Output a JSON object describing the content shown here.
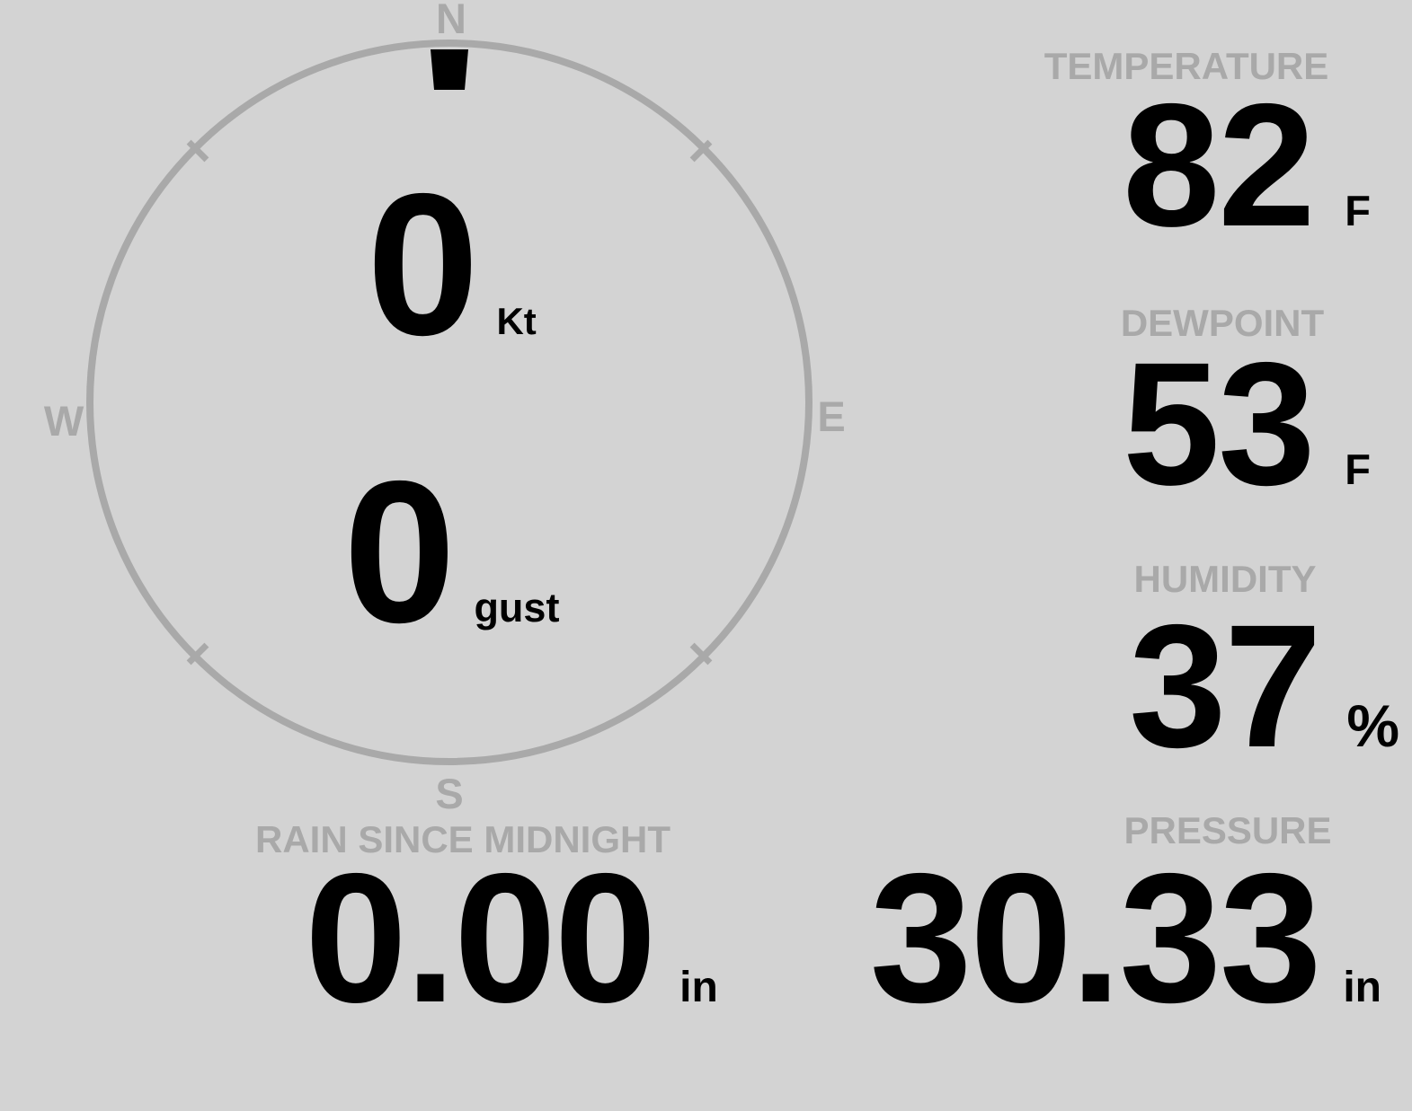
{
  "colors": {
    "background": "#d3d3d3",
    "muted": "#a9a9a9",
    "ink": "#000000"
  },
  "wind": {
    "compass": {
      "north": "N",
      "east": "E",
      "south": "S",
      "west": "W"
    },
    "direction_deg": 0,
    "speed": {
      "value": "0",
      "unit": "Kt"
    },
    "gust": {
      "value": "0",
      "unit": "gust"
    }
  },
  "metrics": {
    "temperature": {
      "label": "TEMPERATURE",
      "value": "82",
      "unit": "F"
    },
    "dewpoint": {
      "label": "DEWPOINT",
      "value": "53",
      "unit": "F"
    },
    "humidity": {
      "label": "HUMIDITY",
      "value": "37",
      "unit": "%"
    },
    "rain": {
      "label": "RAIN SINCE MIDNIGHT",
      "value": "0.00",
      "unit": "in"
    },
    "pressure": {
      "label": "PRESSURE",
      "value": "30.33",
      "unit": "in"
    }
  }
}
